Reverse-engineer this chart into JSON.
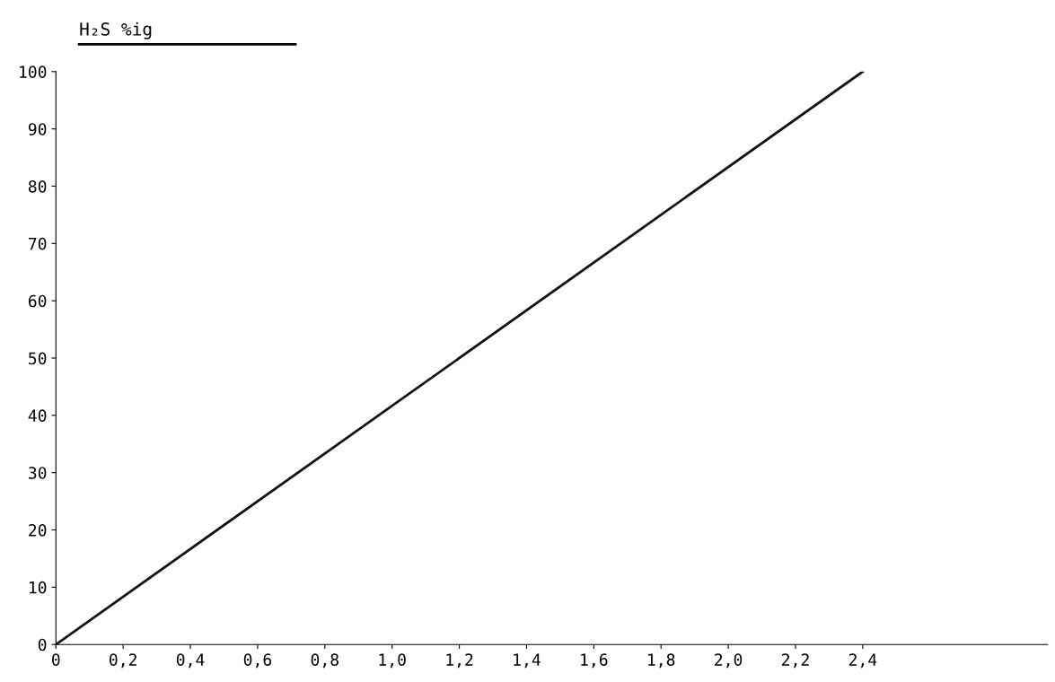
{
  "chart_data": {
    "type": "line",
    "title": "H₂S %ig",
    "x": [
      0,
      2.4
    ],
    "series": [
      {
        "color": "#111111",
        "values": [
          0,
          100
        ]
      }
    ],
    "xlim": [
      0,
      2.95
    ],
    "ylim": [
      0,
      100
    ],
    "xticks": [
      0,
      {
        "value": 0.2,
        "label": "0,2"
      },
      {
        "value": 0.4,
        "label": "0,4"
      },
      {
        "value": 0.6,
        "label": "0,6"
      },
      {
        "value": 0.8,
        "label": "0,8"
      },
      {
        "value": 1.0,
        "label": "1,0"
      },
      {
        "value": 1.2,
        "label": "1,2"
      },
      {
        "value": 1.4,
        "label": "1,4"
      },
      {
        "value": 1.6,
        "label": "1,6"
      },
      {
        "value": 1.8,
        "label": "1,8"
      },
      {
        "value": 2.0,
        "label": "2,0"
      },
      {
        "value": 2.2,
        "label": "2,2"
      },
      {
        "value": 2.4,
        "label": "2,4"
      }
    ],
    "yticks": [
      0,
      10,
      20,
      30,
      40,
      50,
      60,
      70,
      80,
      90,
      100
    ],
    "grid": false,
    "legend": false,
    "marker": "none",
    "line_style": "solid"
  }
}
